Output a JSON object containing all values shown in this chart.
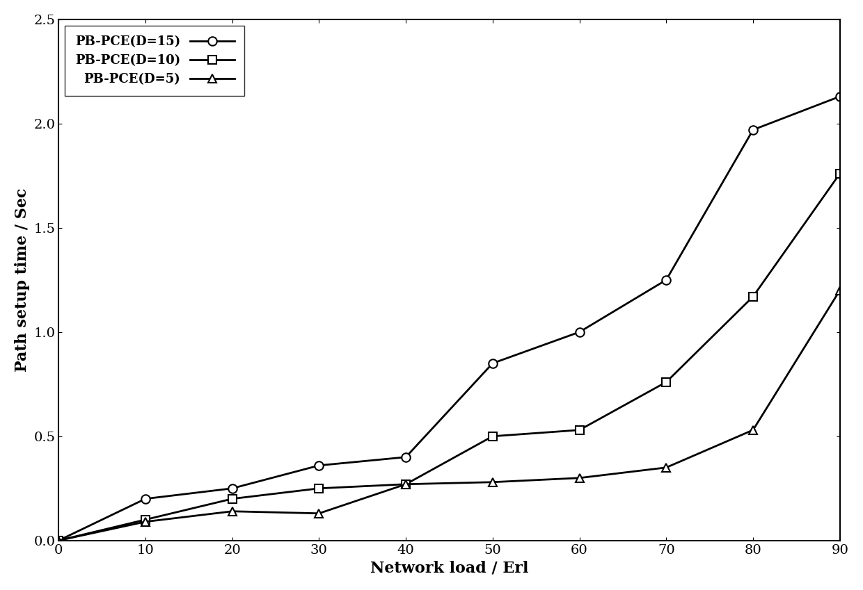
{
  "title": "",
  "xlabel": "Network load / Erl",
  "ylabel": "Path setup time / Sec",
  "xlim": [
    0,
    90
  ],
  "ylim": [
    0,
    2.5
  ],
  "xticks": [
    0,
    10,
    20,
    30,
    40,
    50,
    60,
    70,
    80,
    90
  ],
  "yticks": [
    0,
    0.5,
    1.0,
    1.5,
    2.0,
    2.5
  ],
  "series": [
    {
      "label": "PB-PCE(D=15)",
      "x": [
        0,
        10,
        20,
        30,
        40,
        50,
        60,
        70,
        80,
        90
      ],
      "y": [
        0,
        0.2,
        0.25,
        0.36,
        0.4,
        0.85,
        1.0,
        1.25,
        1.97,
        2.13
      ],
      "marker": "o",
      "color": "#000000",
      "linewidth": 2.0,
      "markersize": 9
    },
    {
      "label": "PB-PCE(D=10)",
      "x": [
        0,
        10,
        20,
        30,
        40,
        50,
        60,
        70,
        80,
        90
      ],
      "y": [
        0,
        0.1,
        0.2,
        0.25,
        0.27,
        0.5,
        0.53,
        0.76,
        1.17,
        1.76
      ],
      "marker": "s",
      "color": "#000000",
      "linewidth": 2.0,
      "markersize": 9
    },
    {
      "label": "PB-PCE(D=5)",
      "x": [
        0,
        10,
        20,
        30,
        40,
        50,
        60,
        70,
        80,
        90
      ],
      "y": [
        0,
        0.09,
        0.14,
        0.13,
        0.27,
        0.28,
        0.3,
        0.35,
        0.53,
        1.2
      ],
      "marker": "^",
      "color": "#000000",
      "linewidth": 2.0,
      "markersize": 9
    }
  ],
  "legend_loc": "upper left",
  "background_color": "#ffffff",
  "grid": false,
  "font_family": "DejaVu Serif",
  "axis_label_fontsize": 16,
  "tick_fontsize": 14,
  "legend_fontsize": 13
}
